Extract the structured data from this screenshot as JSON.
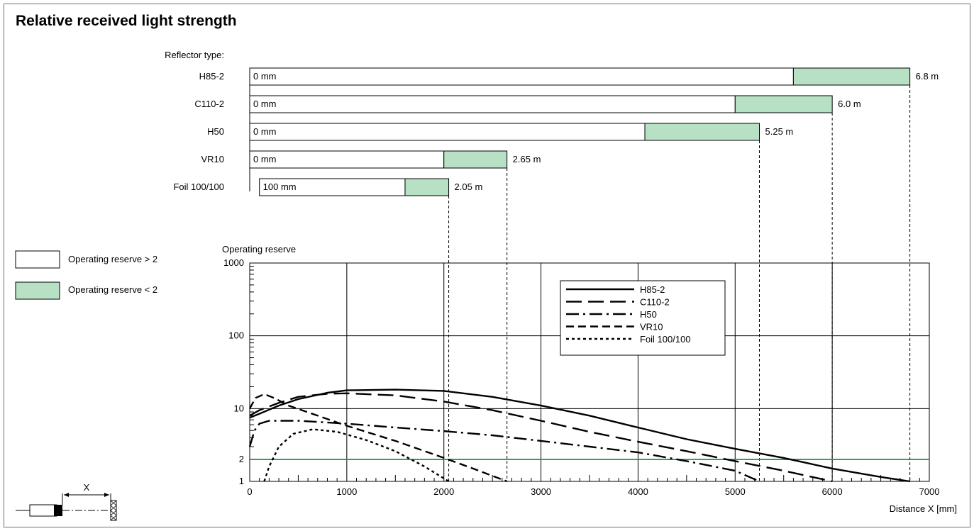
{
  "title": "Relative received light strength",
  "colors": {
    "reserve_low": "#b8e0c4",
    "reserve_line": "#1a9a3a",
    "ink": "#000000"
  },
  "bars": {
    "header": "Reflector type:",
    "items": [
      {
        "name": "H85-2",
        "start_label": "0 mm",
        "start_mm": 0,
        "reserve_start_mm": 5600,
        "end_mm": 6800,
        "end_label": "6.8 m"
      },
      {
        "name": "C110-2",
        "start_label": "0 mm",
        "start_mm": 0,
        "reserve_start_mm": 5000,
        "end_mm": 6000,
        "end_label": "6.0 m"
      },
      {
        "name": "H50",
        "start_label": "0 mm",
        "start_mm": 0,
        "reserve_start_mm": 4070,
        "end_mm": 5250,
        "end_label": "5.25 m"
      },
      {
        "name": "VR10",
        "start_label": "0 mm",
        "start_mm": 0,
        "reserve_start_mm": 2000,
        "end_mm": 2650,
        "end_label": "2.65 m"
      },
      {
        "name": "Foil 100/100",
        "start_label": "100 mm",
        "start_mm": 100,
        "reserve_start_mm": 1600,
        "end_mm": 2050,
        "end_label": "2.05 m"
      }
    ]
  },
  "key": {
    "high_label": "Operating reserve > 2",
    "low_label": "Operating reserve < 2"
  },
  "chart_data": {
    "type": "line",
    "ylabel": "Operating reserve",
    "xlabel": "Distance X [mm]",
    "xlim": [
      0,
      7000
    ],
    "ylim": [
      1,
      1000
    ],
    "yscale": "log",
    "x_ticks": [
      0,
      1000,
      2000,
      3000,
      4000,
      5000,
      6000,
      7000
    ],
    "y_ticks": [
      1,
      2,
      10,
      100,
      1000
    ],
    "threshold": 2,
    "legend_position": "top-right",
    "series": [
      {
        "name": "H85-2",
        "dash": "solid",
        "points": [
          [
            0,
            7.5
          ],
          [
            100,
            8.5
          ],
          [
            300,
            11
          ],
          [
            500,
            13.5
          ],
          [
            800,
            16.5
          ],
          [
            1000,
            17.8
          ],
          [
            1500,
            18.2
          ],
          [
            2000,
            17.5
          ],
          [
            2500,
            14.5
          ],
          [
            3000,
            11
          ],
          [
            3500,
            8
          ],
          [
            4000,
            5.5
          ],
          [
            4500,
            3.8
          ],
          [
            5000,
            2.8
          ],
          [
            5500,
            2.1
          ],
          [
            6000,
            1.5
          ],
          [
            6500,
            1.15
          ],
          [
            6800,
            1
          ]
        ]
      },
      {
        "name": "C110-2",
        "dash": "long",
        "points": [
          [
            0,
            8
          ],
          [
            100,
            9.5
          ],
          [
            300,
            12
          ],
          [
            500,
            14.5
          ],
          [
            800,
            16
          ],
          [
            1000,
            16.2
          ],
          [
            1500,
            15.2
          ],
          [
            2000,
            12.5
          ],
          [
            2500,
            9.5
          ],
          [
            3000,
            6.8
          ],
          [
            3500,
            4.8
          ],
          [
            4000,
            3.5
          ],
          [
            4500,
            2.6
          ],
          [
            5000,
            1.9
          ],
          [
            5500,
            1.4
          ],
          [
            6000,
            1
          ]
        ]
      },
      {
        "name": "H50",
        "dash": "dashdot",
        "points": [
          [
            0,
            3
          ],
          [
            50,
            5
          ],
          [
            100,
            6.2
          ],
          [
            200,
            6.8
          ],
          [
            500,
            6.8
          ],
          [
            1000,
            6.2
          ],
          [
            1500,
            5.5
          ],
          [
            2000,
            4.9
          ],
          [
            2500,
            4.3
          ],
          [
            3000,
            3.6
          ],
          [
            3500,
            3
          ],
          [
            4000,
            2.5
          ],
          [
            4500,
            1.9
          ],
          [
            5000,
            1.4
          ],
          [
            5250,
            1
          ]
        ]
      },
      {
        "name": "VR10",
        "dash": "medium",
        "points": [
          [
            0,
            10
          ],
          [
            60,
            14
          ],
          [
            150,
            15.8
          ],
          [
            250,
            14
          ],
          [
            400,
            11
          ],
          [
            700,
            8
          ],
          [
            1000,
            5.8
          ],
          [
            1500,
            3.6
          ],
          [
            2000,
            2.1
          ],
          [
            2300,
            1.5
          ],
          [
            2650,
            1
          ]
        ]
      },
      {
        "name": "Foil 100/100",
        "dash": "dotted",
        "points": [
          [
            150,
            1
          ],
          [
            200,
            1.6
          ],
          [
            300,
            3
          ],
          [
            450,
            4.5
          ],
          [
            650,
            5.2
          ],
          [
            900,
            4.8
          ],
          [
            1200,
            3.7
          ],
          [
            1500,
            2.6
          ],
          [
            1800,
            1.6
          ],
          [
            2050,
            1
          ]
        ]
      }
    ]
  },
  "schematic": {
    "x_label": "X"
  }
}
